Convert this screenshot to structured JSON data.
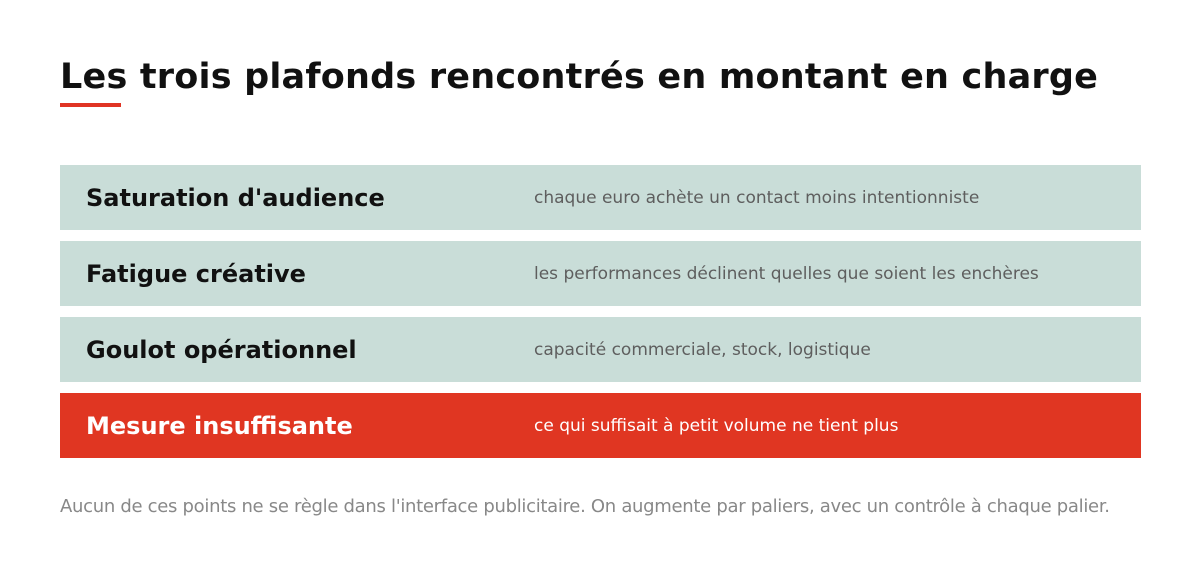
{
  "title": "Les trois plafonds rencontrés en montant en charge",
  "rows": [
    {
      "label": "Saturation d'audience",
      "description": "chaque euro achète un contact moins intentionniste"
    },
    {
      "label": "Fatigue créative",
      "description": "les performances déclinent quelles que soient les enchères"
    },
    {
      "label": "Goulot opérationnel",
      "description": "capacité commerciale, stock, logistique"
    },
    {
      "label": "Mesure insuffisante",
      "description": "ce qui suffisait à petit volume ne tient plus"
    }
  ],
  "footnote": "Aucun de ces points ne se règle dans l'interface publicitaire. On augmente par paliers, avec un contrôle à chaque palier.",
  "colors": {
    "accent": "#e03622",
    "row_background": "#c9ddd8",
    "title_text": "#111111",
    "description_text": "#5e5e5e",
    "footnote_text": "#888888"
  }
}
